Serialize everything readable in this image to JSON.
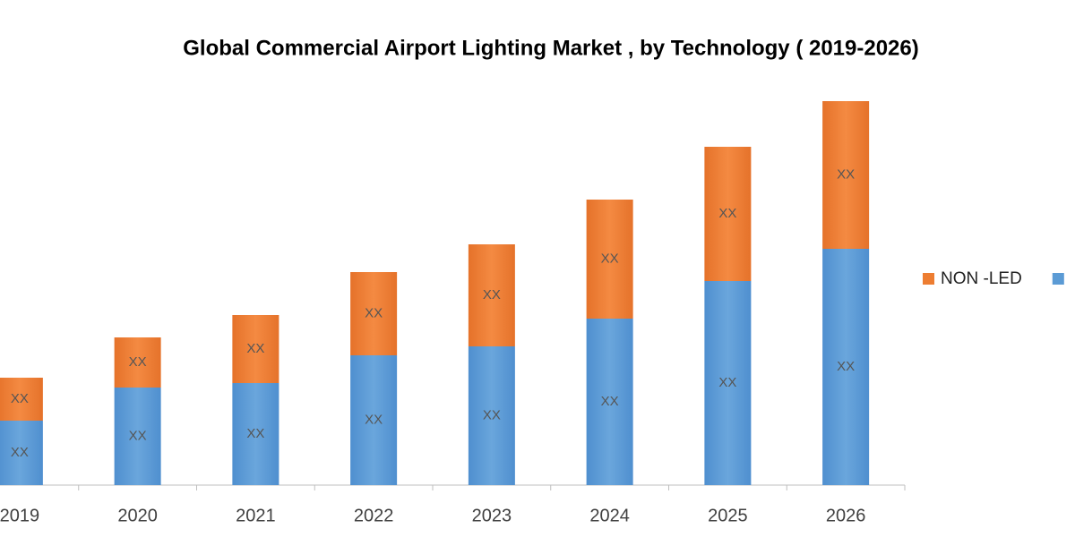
{
  "chart_data": {
    "type": "stacked-bar",
    "title": "Global Commercial Airport Lighting Market , by Technology ( 2019-2026)",
    "categories": [
      "2019",
      "2020",
      "2021",
      "2022",
      "2023",
      "2024",
      "2025",
      "2026"
    ],
    "series": [
      {
        "color": "#5b9bd5",
        "values": [
          72,
          109,
          114,
          145,
          155,
          186,
          228,
          264
        ],
        "value_labels": [
          "XX",
          "XX",
          "XX",
          "XX",
          "XX",
          "XX",
          "XX",
          "XX"
        ]
      },
      {
        "name": "NON -LED",
        "color": "#ed7d31",
        "values": [
          48,
          56,
          76,
          93,
          114,
          133,
          150,
          165
        ],
        "value_labels": [
          "XX",
          "XX",
          "XX",
          "XX",
          "XX",
          "XX",
          "XX",
          "XX"
        ]
      }
    ]
  }
}
